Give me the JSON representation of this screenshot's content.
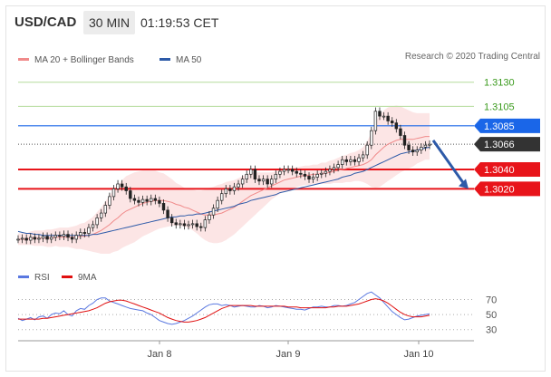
{
  "header": {
    "pair": "USD/CAD",
    "timeframe": "30 MIN",
    "time": "01:19:53 CET"
  },
  "legend": {
    "ma_bollinger_label": "MA 20 + Bollinger Bands",
    "ma_bollinger_color": "#f08a8a",
    "ma50_label": "MA 50",
    "ma50_color": "#2d5aa8",
    "rsi_label": "RSI",
    "rsi_color": "#5a78e0",
    "ma9_label": "9MA",
    "ma9_color": "#e01010"
  },
  "credit": "Research © 2020 Trading Central",
  "chart_data": {
    "type": "line",
    "title": "USD/CAD",
    "x_tick_labels": [
      "Jan 8",
      "Jan 9",
      "Jan 10"
    ],
    "ylim": [
      1.2953,
      1.314
    ],
    "levels": [
      {
        "label": "1.3130",
        "value": 1.313,
        "style": "text",
        "color": "#3a9a1c",
        "line": "#b5dc9b"
      },
      {
        "label": "1.3105",
        "value": 1.3105,
        "style": "text",
        "color": "#3a9a1c",
        "line": "#b5dc9b"
      },
      {
        "label": "1.3085",
        "value": 1.3085,
        "style": "box",
        "color": "#1a66e8",
        "line": "#1a66e8"
      },
      {
        "label": "1.3066",
        "value": 1.3066,
        "style": "box",
        "color": "#333333",
        "line": "dotted"
      },
      {
        "label": "1.3040",
        "value": 1.304,
        "style": "box",
        "color": "#e8141a",
        "line": "#e8141a"
      },
      {
        "label": "1.3020",
        "value": 1.302,
        "style": "box",
        "color": "#e8141a",
        "line": "#e8141a"
      }
    ],
    "forecast_arrow": {
      "from": 1.307,
      "to": 1.302,
      "color": "#2d5aa8"
    },
    "price_closes": [
      1.2968,
      1.2969,
      1.2967,
      1.297,
      1.2968,
      1.2969,
      1.2971,
      1.2968,
      1.297,
      1.2972,
      1.2971,
      1.2973,
      1.297,
      1.2968,
      1.2972,
      1.2975,
      1.2974,
      1.298,
      1.2983,
      1.299,
      1.2995,
      1.3003,
      1.3012,
      1.302,
      1.3025,
      1.3022,
      1.3018,
      1.301,
      1.3008,
      1.3006,
      1.3009,
      1.3007,
      1.301,
      1.3008,
      1.3005,
      1.2998,
      1.299,
      1.2985,
      1.2983,
      1.2984,
      1.2982,
      1.2983,
      1.2984,
      1.2981,
      1.298,
      1.2988,
      1.2993,
      1.3,
      1.3008,
      1.3015,
      1.302,
      1.3018,
      1.3022,
      1.3025,
      1.303,
      1.3035,
      1.304,
      1.303,
      1.3028,
      1.303,
      1.3025,
      1.303,
      1.3035,
      1.3038,
      1.304,
      1.304,
      1.3038,
      1.3036,
      1.3035,
      1.3033,
      1.303,
      1.3032,
      1.3035,
      1.3036,
      1.3038,
      1.304,
      1.3042,
      1.3045,
      1.305,
      1.3048,
      1.305,
      1.3048,
      1.3052,
      1.3055,
      1.3065,
      1.308,
      1.31,
      1.3095,
      1.3095,
      1.309,
      1.3088,
      1.3082,
      1.3075,
      1.3065,
      1.306,
      1.3058,
      1.306,
      1.3063,
      1.3065,
      1.3066
    ],
    "ma20": [
      1.2968,
      1.2968,
      1.2968,
      1.2969,
      1.2969,
      1.2969,
      1.2969,
      1.2969,
      1.2969,
      1.297,
      1.297,
      1.297,
      1.297,
      1.297,
      1.297,
      1.2971,
      1.2971,
      1.2972,
      1.2973,
      1.2975,
      1.2977,
      1.298,
      1.2983,
      1.2987,
      1.299,
      1.2994,
      1.2997,
      1.2999,
      1.3001,
      1.3003,
      1.3005,
      1.3006,
      1.3007,
      1.3008,
      1.3008,
      1.3008,
      1.3007,
      1.3006,
      1.3004,
      1.3003,
      1.3001,
      1.3,
      1.2998,
      1.2996,
      1.2994,
      1.2993,
      1.2993,
      1.2993,
      1.2994,
      1.2995,
      1.2997,
      1.2999,
      1.3001,
      1.3004,
      1.3007,
      1.301,
      1.3013,
      1.3015,
      1.3017,
      1.3019,
      1.3021,
      1.3023,
      1.3025,
      1.3027,
      1.3029,
      1.303,
      1.3031,
      1.3032,
      1.3033,
      1.3034,
      1.3034,
      1.3035,
      1.3035,
      1.3036,
      1.3036,
      1.3037,
      1.3038,
      1.3039,
      1.304,
      1.3041,
      1.3042,
      1.3043,
      1.3044,
      1.3045,
      1.3047,
      1.305,
      1.3055,
      1.3059,
      1.3063,
      1.3066,
      1.3068,
      1.307,
      1.3071,
      1.3071,
      1.3071,
      1.3071,
      1.3072,
      1.3073,
      1.3074,
      1.3074
    ],
    "ma50": [
      1.2976,
      1.2975,
      1.2974,
      1.2974,
      1.2973,
      1.2973,
      1.2972,
      1.2972,
      1.2972,
      1.2972,
      1.2972,
      1.2972,
      1.2972,
      1.2972,
      1.2972,
      1.2972,
      1.2972,
      1.2972,
      1.2973,
      1.2973,
      1.2974,
      1.2975,
      1.2976,
      1.2977,
      1.2978,
      1.2979,
      1.298,
      1.2981,
      1.2982,
      1.2983,
      1.2984,
      1.2985,
      1.2986,
      1.2987,
      1.2988,
      1.2989,
      1.299,
      1.2991,
      1.2991,
      1.2992,
      1.2992,
      1.2993,
      1.2993,
      1.2994,
      1.2994,
      1.2995,
      1.2996,
      1.2997,
      1.2998,
      1.2999,
      1.3,
      1.3001,
      1.3002,
      1.3004,
      1.3005,
      1.3006,
      1.3008,
      1.3009,
      1.301,
      1.3011,
      1.3012,
      1.3013,
      1.3014,
      1.3016,
      1.3017,
      1.3018,
      1.3019,
      1.302,
      1.3021,
      1.3022,
      1.3023,
      1.3024,
      1.3025,
      1.3026,
      1.3027,
      1.3028,
      1.3029,
      1.303,
      1.3032,
      1.3033,
      1.3034,
      1.3036,
      1.3037,
      1.3038,
      1.304,
      1.3042,
      1.3044,
      1.3046,
      1.3048,
      1.305,
      1.3052,
      1.3054,
      1.3056,
      1.3057,
      1.3058,
      1.3059,
      1.306,
      1.3061,
      1.3062,
      1.3063
    ],
    "band_width": [
      0.0006,
      0.0006,
      0.0006,
      0.0007,
      0.0008,
      0.0008,
      0.0008,
      0.0009,
      0.0009,
      0.0009,
      0.001,
      0.001,
      0.001,
      0.0011,
      0.0012,
      0.0013,
      0.0014,
      0.0016,
      0.0018,
      0.0021,
      0.0024,
      0.0027,
      0.003,
      0.0032,
      0.0034,
      0.0035,
      0.0036,
      0.0036,
      0.0036,
      0.0035,
      0.0034,
      0.0033,
      0.0032,
      0.0031,
      0.0029,
      0.0028,
      0.0026,
      0.0024,
      0.0022,
      0.0021,
      0.002,
      0.002,
      0.0021,
      0.0022,
      0.0024,
      0.0026,
      0.0028,
      0.0029,
      0.003,
      0.003,
      0.003,
      0.0029,
      0.0028,
      0.0027,
      0.0026,
      0.0025,
      0.0024,
      0.0022,
      0.002,
      0.0018,
      0.0016,
      0.0014,
      0.0013,
      0.0012,
      0.0012,
      0.0011,
      0.0011,
      0.001,
      0.001,
      0.001,
      0.001,
      0.001,
      0.001,
      0.0011,
      0.0011,
      0.0012,
      0.0012,
      0.0013,
      0.0014,
      0.0014,
      0.0015,
      0.0015,
      0.0016,
      0.0018,
      0.0022,
      0.0028,
      0.0034,
      0.0037,
      0.0038,
      0.0038,
      0.0037,
      0.0036,
      0.0034,
      0.0032,
      0.003,
      0.0028,
      0.0026,
      0.0025,
      0.0024,
      0.0024
    ],
    "rsi": {
      "ylim": [
        20,
        85
      ],
      "ticks": [
        "70",
        "50",
        "30"
      ],
      "values": [
        45,
        42,
        44,
        46,
        43,
        47,
        48,
        45,
        50,
        52,
        51,
        55,
        50,
        48,
        55,
        58,
        57,
        62,
        65,
        70,
        72,
        72,
        68,
        66,
        64,
        62,
        60,
        58,
        57,
        56,
        55,
        52,
        50,
        46,
        42,
        40,
        38,
        37,
        38,
        40,
        42,
        45,
        48,
        52,
        56,
        60,
        63,
        64,
        64,
        62,
        63,
        62,
        60,
        61,
        62,
        61,
        60,
        60,
        62,
        61,
        59,
        60,
        62,
        61,
        60,
        59,
        58,
        57,
        57,
        56,
        58,
        60,
        60,
        61,
        60,
        60,
        62,
        62,
        61,
        62,
        64,
        66,
        70,
        74,
        78,
        80,
        76,
        72,
        66,
        60,
        54,
        50,
        46,
        43,
        44,
        46,
        48,
        49,
        50,
        51
      ],
      "ma9": [
        44,
        44,
        44,
        44,
        44,
        44,
        45,
        45,
        46,
        47,
        48,
        49,
        50,
        51,
        52,
        53,
        54,
        55,
        57,
        59,
        62,
        65,
        67,
        68,
        69,
        69,
        68,
        66,
        64,
        62,
        60,
        58,
        56,
        54,
        52,
        49,
        46,
        44,
        42,
        41,
        40,
        40,
        41,
        42,
        44,
        46,
        49,
        52,
        55,
        58,
        60,
        62,
        62,
        62,
        62,
        62,
        62,
        61,
        61,
        61,
        61,
        61,
        61,
        61,
        61,
        60,
        60,
        60,
        59,
        59,
        59,
        59,
        59,
        59,
        59,
        60,
        60,
        61,
        61,
        61,
        62,
        63,
        64,
        66,
        68,
        70,
        71,
        70,
        68,
        65,
        61,
        57,
        53,
        50,
        48,
        47,
        47,
        47,
        48,
        49
      ]
    }
  }
}
